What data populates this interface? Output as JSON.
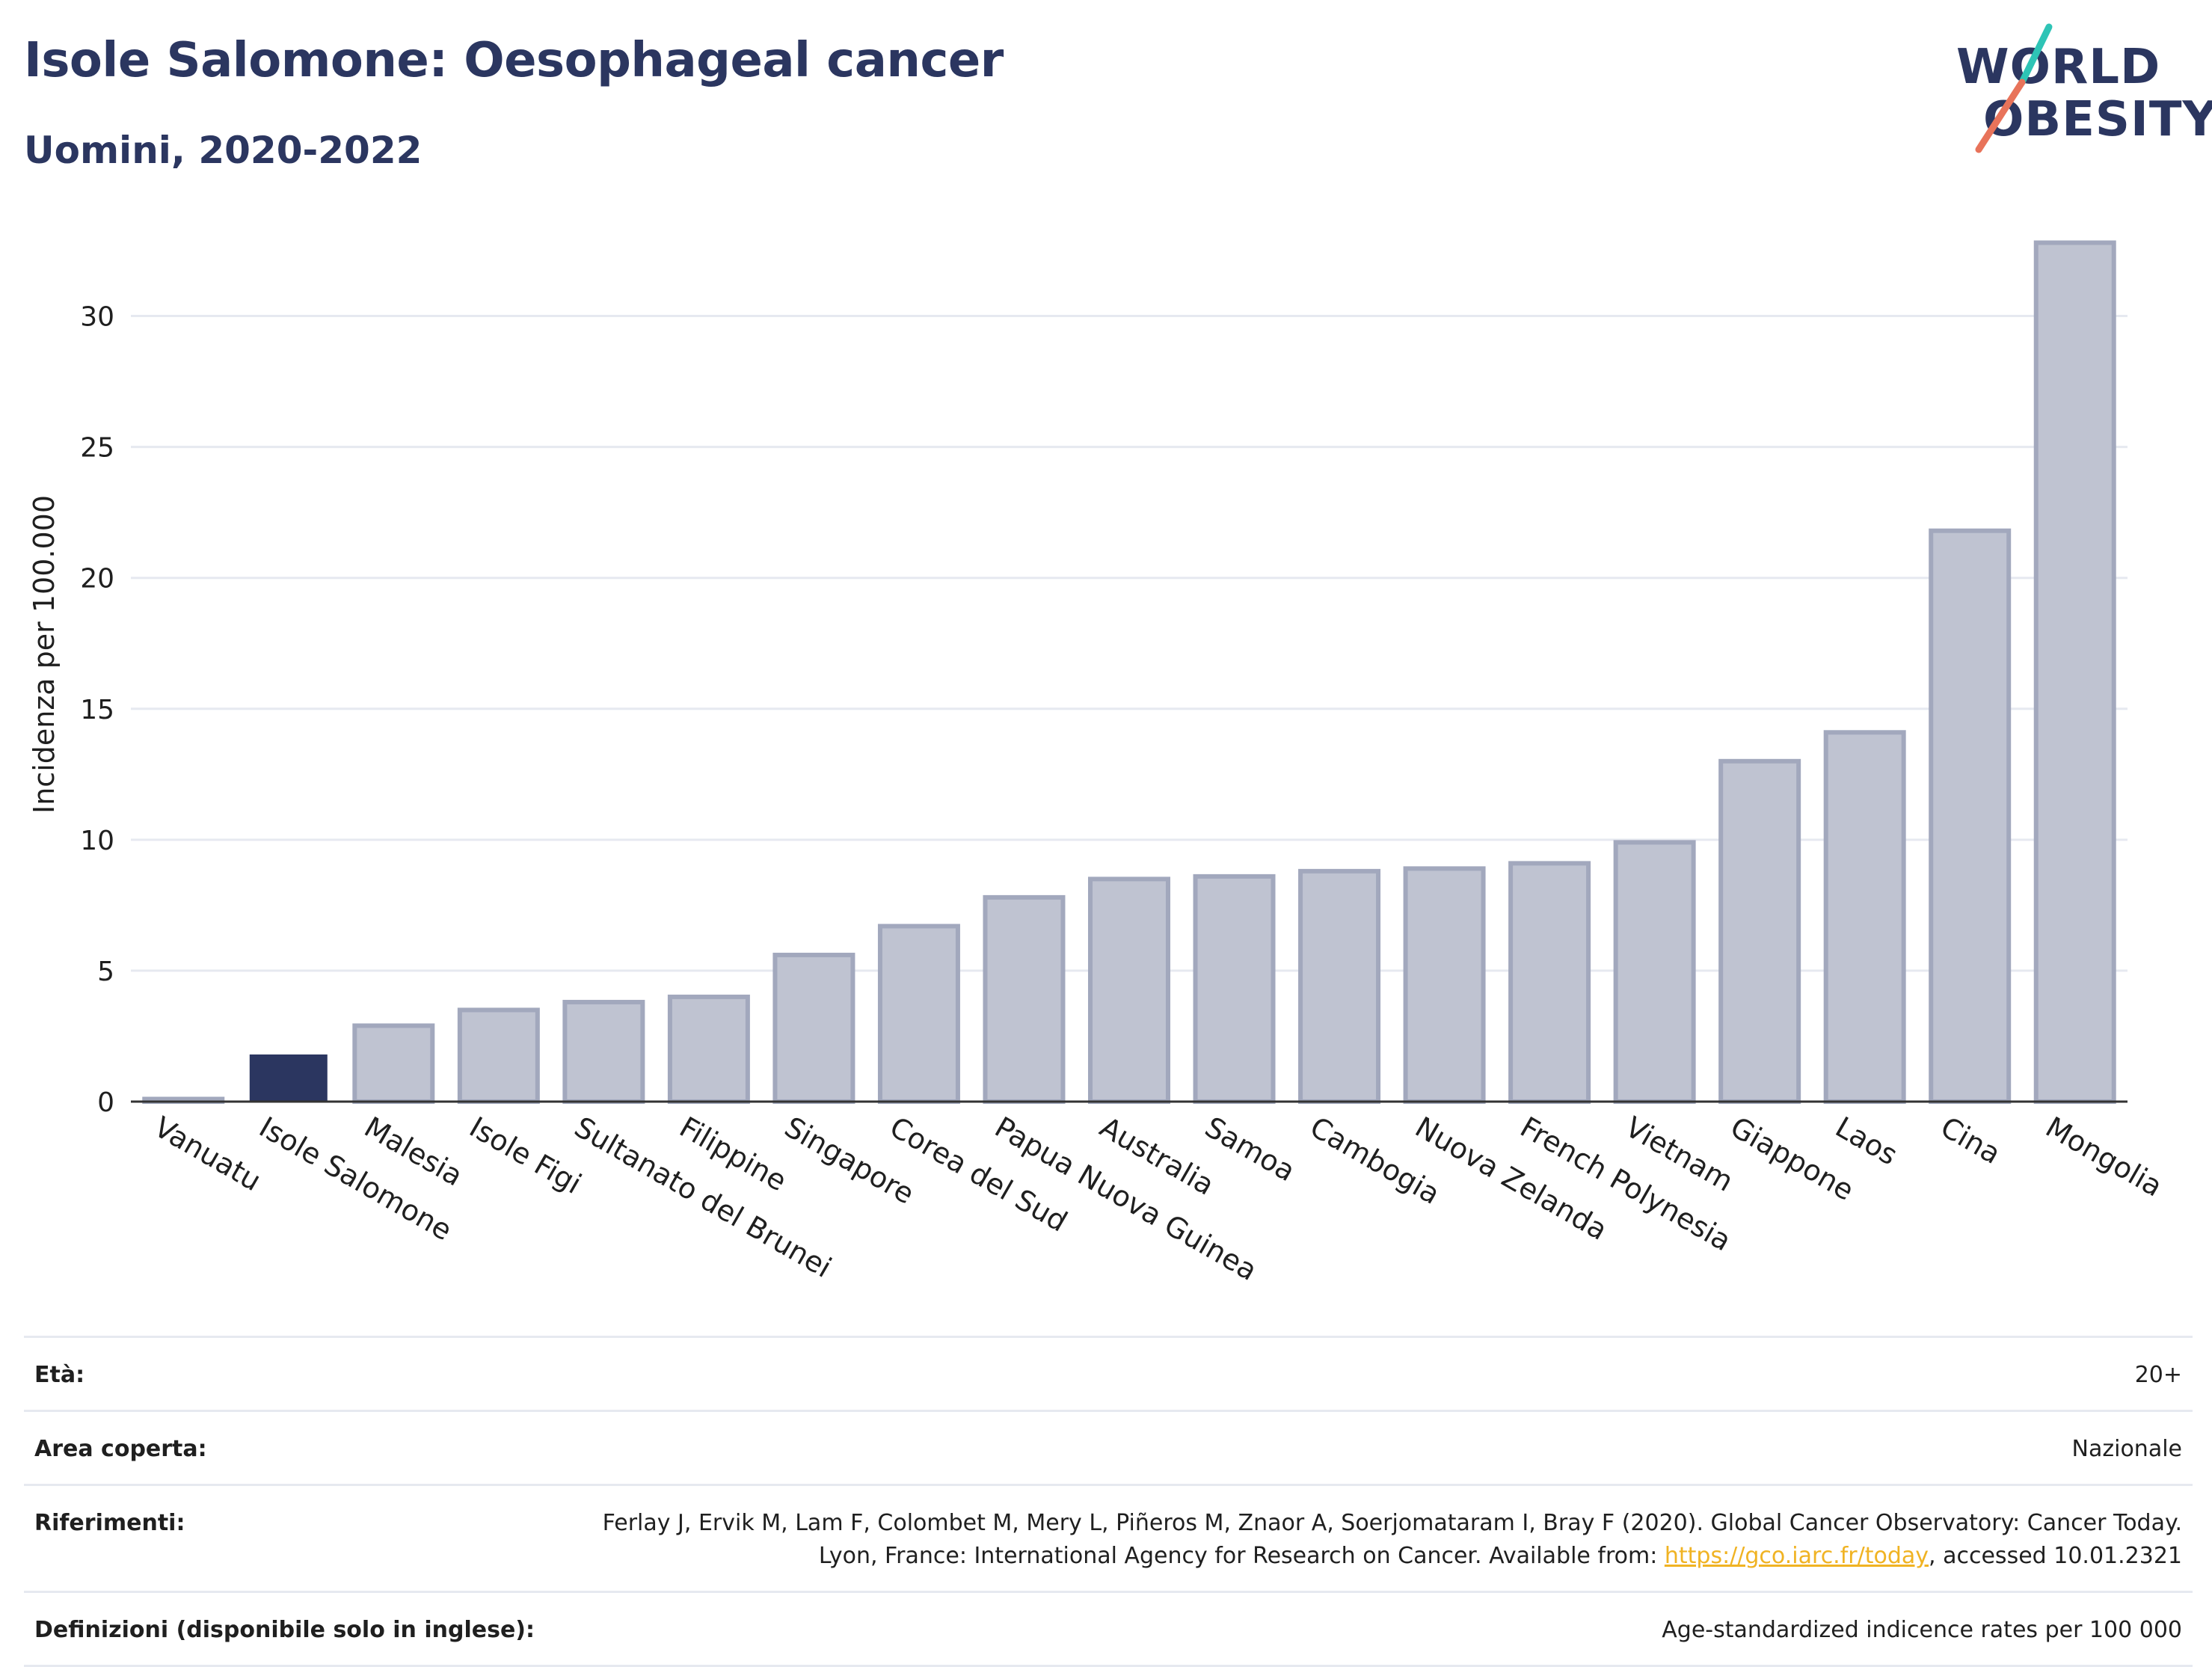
{
  "header": {
    "title": "Isole Salomone: Oesophageal cancer",
    "subtitle": "Uomini, 2020-2022"
  },
  "logo": {
    "line1": "WORLD",
    "line2": "OBESITY",
    "slash_colors": [
      "#2ec4b6",
      "#e8735a"
    ]
  },
  "colors": {
    "highlight_bar": "#2b3660",
    "other_bar_fill": "#bfc3d1",
    "other_bar_stroke": "#a2a8bd",
    "title": "#2b3660",
    "link": "#f0b323"
  },
  "chart_data": {
    "type": "bar",
    "ylabel": "Incidenza per 100.000",
    "ylim": [
      0,
      33.5
    ],
    "yticks": [
      0,
      5,
      10,
      15,
      20,
      25,
      30
    ],
    "grid": true,
    "highlight": "Isole Salomone",
    "categories": [
      "Vanuatu",
      "Isole Salomone",
      "Malesia",
      "Isole Figi",
      "Sultanato del Brunei",
      "Filippine",
      "Singapore",
      "Corea del Sud",
      "Papua Nuova Guinea",
      "Australia",
      "Samoa",
      "Cambogia",
      "Nuova Zelanda",
      "French Polynesia",
      "Vietnam",
      "Giappone",
      "Laos",
      "Cina",
      "Mongolia"
    ],
    "values": [
      0.1,
      1.8,
      2.9,
      3.5,
      3.8,
      4.0,
      5.6,
      6.7,
      7.8,
      8.5,
      8.6,
      8.8,
      8.9,
      9.1,
      9.9,
      13.0,
      14.1,
      21.8,
      32.8
    ]
  },
  "info": {
    "eta_label": "Età:",
    "eta_value": "20+",
    "area_label": "Area coperta:",
    "area_value": "Nazionale",
    "ref_label": "Riferimenti:",
    "ref_text_1": "Ferlay J, Ervik M, Lam F, Colombet M, Mery L, Piñeros M, Znaor A, Soerjomataram I, Bray F (2020). Global Cancer Observatory: Cancer Today. Lyon, France: International Agency for Research on Cancer. Available from: ",
    "ref_link": "https://gco.iarc.fr/today",
    "ref_text_2": ", accessed 10.01.2321",
    "def_label": "Definizioni (disponibile solo in inglese):",
    "def_value": "Age-standardized indicence rates per 100 000"
  }
}
